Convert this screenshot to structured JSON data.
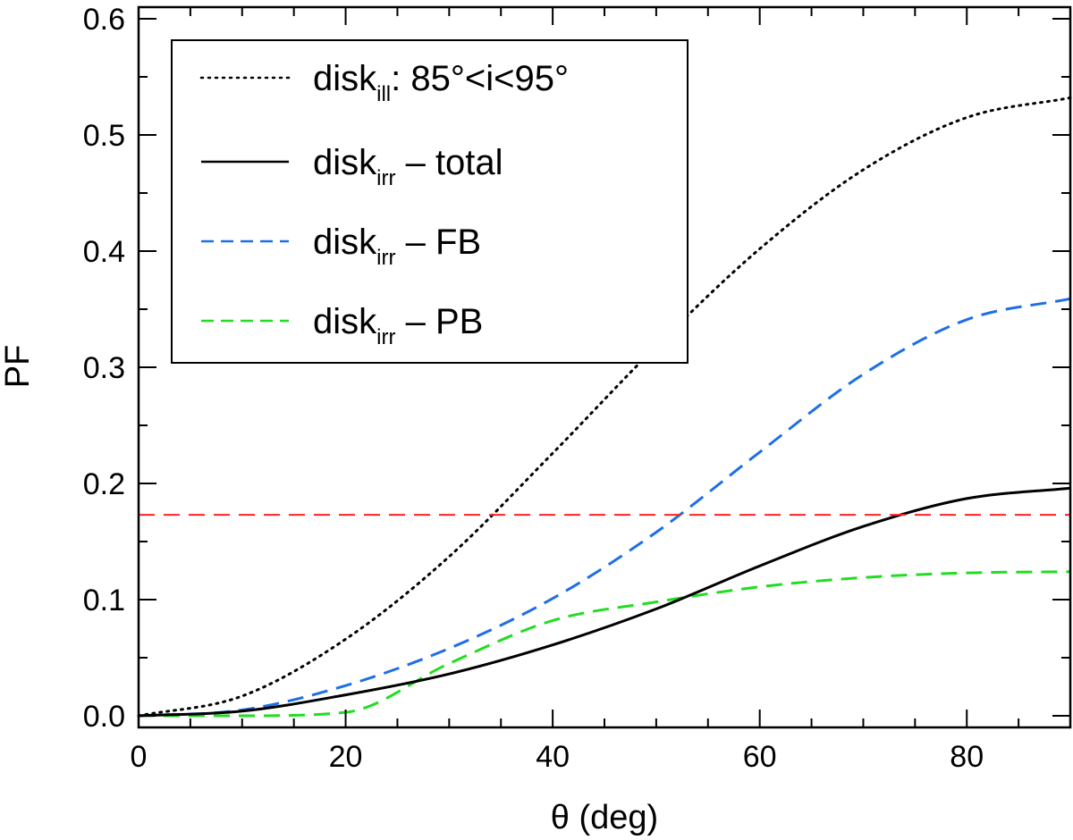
{
  "chart_data": {
    "type": "line",
    "xlabel": "θ (deg)",
    "ylabel": "PF",
    "xlim": [
      0,
      90
    ],
    "ylim": [
      -0.01,
      0.61
    ],
    "xticks": [
      0,
      20,
      40,
      60,
      80
    ],
    "xtick_labels": [
      "0",
      "20",
      "40",
      "60",
      "80"
    ],
    "yticks": [
      0.0,
      0.1,
      0.2,
      0.3,
      0.4,
      0.5,
      0.6
    ],
    "ytick_labels": [
      "0.0",
      "0.1",
      "0.2",
      "0.3",
      "0.4",
      "0.5",
      "0.6"
    ],
    "legend_position": "top-left",
    "x": [
      0,
      10,
      20,
      30,
      40,
      50,
      60,
      70,
      80,
      90
    ],
    "series": [
      {
        "name": "disk_ill: 85°<i<95°",
        "legend_main": "disk",
        "legend_sub": "ill",
        "legend_suffix": ": 85°<i<95°",
        "style": "dotted",
        "color": "#000000",
        "values": [
          0.0,
          0.017,
          0.066,
          0.137,
          0.226,
          0.318,
          0.402,
          0.47,
          0.515,
          0.532
        ]
      },
      {
        "name": "disk_irr – total",
        "legend_main": "disk",
        "legend_sub": "irr",
        "legend_suffix": " – total",
        "style": "solid",
        "color": "#000000",
        "values": [
          0.0,
          0.004,
          0.018,
          0.036,
          0.061,
          0.092,
          0.129,
          0.163,
          0.187,
          0.196
        ]
      },
      {
        "name": "disk_irr – FB",
        "legend_main": "disk",
        "legend_sub": "irr",
        "legend_suffix": " – FB",
        "style": "dashed",
        "color": "#1e6fe6",
        "values": [
          0.0,
          0.005,
          0.026,
          0.058,
          0.101,
          0.158,
          0.227,
          0.294,
          0.341,
          0.359
        ]
      },
      {
        "name": "disk_irr – PB",
        "legend_main": "disk",
        "legend_sub": "irr",
        "legend_suffix": " – PB",
        "style": "dashed",
        "color": "#22dd22",
        "values": [
          0.0,
          0.0,
          0.003,
          0.045,
          0.082,
          0.098,
          0.111,
          0.119,
          0.123,
          0.124
        ]
      }
    ],
    "reference_lines": [
      {
        "orientation": "horizontal",
        "y": 0.173,
        "style": "dashed",
        "color": "#ff2020"
      }
    ]
  }
}
